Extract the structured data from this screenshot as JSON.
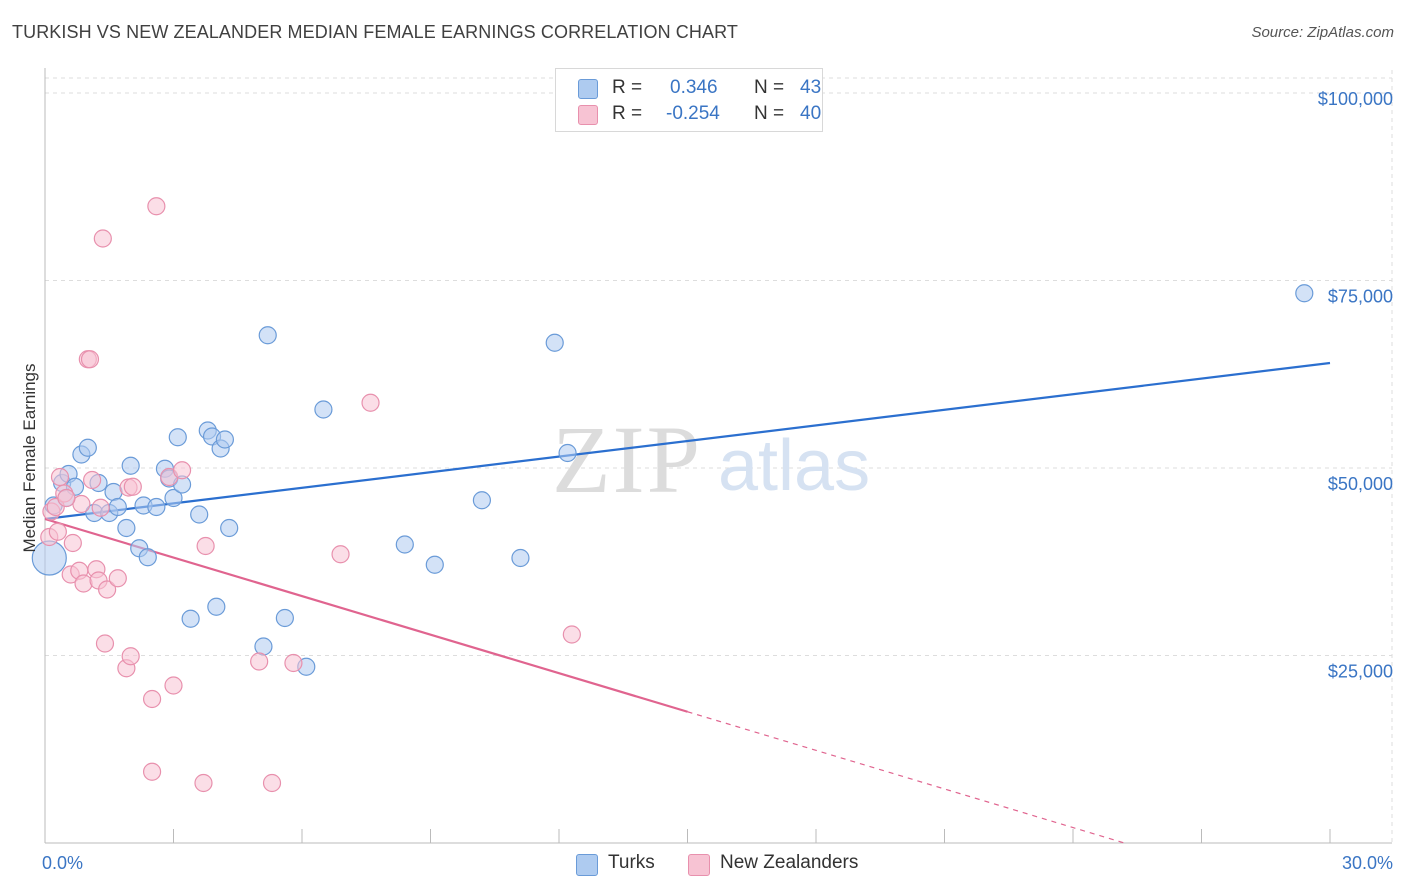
{
  "title": "TURKISH VS NEW ZEALANDER MEDIAN FEMALE EARNINGS CORRELATION CHART",
  "source": "Source: ZipAtlas.com",
  "watermark": {
    "zip": "ZIP",
    "atlas": "atlas"
  },
  "legend": {
    "r_label": "R =",
    "n_label": "N =",
    "turks": {
      "r": "0.346",
      "n": "43"
    },
    "nz": {
      "r": "-0.254",
      "n": "40"
    }
  },
  "bottom_legend": {
    "turks": "Turks",
    "nz": "New Zealanders"
  },
  "colors": {
    "turks_fill": "#aecbf0",
    "turks_stroke": "#6a9bd8",
    "turks_line": "#2b6fcf",
    "nz_fill": "#f7c3d3",
    "nz_stroke": "#e890ad",
    "nz_line": "#e0648f",
    "axis_text": "#3a75c4",
    "grid": "#dddddd"
  },
  "chart_data": {
    "type": "scatter",
    "title": "TURKISH VS NEW ZEALANDER MEDIAN FEMALE EARNINGS CORRELATION CHART",
    "xlabel": "",
    "ylabel": "Median Female Earnings",
    "xlim": [
      0,
      30
    ],
    "ylim": [
      0,
      102000
    ],
    "x_tick_labels": [
      "0.0%",
      "30.0%"
    ],
    "y_ticks": [
      25000,
      50000,
      75000,
      100000
    ],
    "y_tick_labels": [
      "$25,000",
      "$50,000",
      "$75,000",
      "$100,000"
    ],
    "series": [
      {
        "name": "Turks",
        "trend": {
          "x0": 0,
          "y0": 43200,
          "x1": 30,
          "y1": 64000
        },
        "points": [
          {
            "x": 0.1,
            "y": 38000,
            "big": true
          },
          {
            "x": 0.2,
            "y": 45000
          },
          {
            "x": 0.4,
            "y": 48000
          },
          {
            "x": 0.5,
            "y": 46000
          },
          {
            "x": 0.55,
            "y": 49200
          },
          {
            "x": 0.7,
            "y": 47500
          },
          {
            "x": 0.85,
            "y": 51800
          },
          {
            "x": 1.0,
            "y": 52700
          },
          {
            "x": 1.15,
            "y": 44000
          },
          {
            "x": 1.25,
            "y": 48000
          },
          {
            "x": 1.5,
            "y": 44000
          },
          {
            "x": 1.6,
            "y": 46800
          },
          {
            "x": 1.7,
            "y": 44800
          },
          {
            "x": 1.9,
            "y": 42000
          },
          {
            "x": 2.0,
            "y": 50300
          },
          {
            "x": 2.2,
            "y": 39300
          },
          {
            "x": 2.4,
            "y": 38100
          },
          {
            "x": 2.3,
            "y": 45000
          },
          {
            "x": 2.6,
            "y": 44800
          },
          {
            "x": 2.8,
            "y": 49900
          },
          {
            "x": 2.9,
            "y": 48600
          },
          {
            "x": 3.0,
            "y": 46000
          },
          {
            "x": 3.1,
            "y": 54100
          },
          {
            "x": 3.2,
            "y": 47800
          },
          {
            "x": 3.4,
            "y": 29900
          },
          {
            "x": 3.6,
            "y": 43800
          },
          {
            "x": 3.8,
            "y": 55000
          },
          {
            "x": 3.9,
            "y": 54200
          },
          {
            "x": 4.0,
            "y": 31500
          },
          {
            "x": 4.1,
            "y": 52600
          },
          {
            "x": 4.2,
            "y": 53800
          },
          {
            "x": 4.3,
            "y": 42000
          },
          {
            "x": 5.1,
            "y": 26200
          },
          {
            "x": 5.2,
            "y": 67700
          },
          {
            "x": 5.6,
            "y": 30000
          },
          {
            "x": 6.1,
            "y": 23500
          },
          {
            "x": 6.5,
            "y": 57800
          },
          {
            "x": 8.4,
            "y": 39800
          },
          {
            "x": 9.1,
            "y": 37100
          },
          {
            "x": 10.2,
            "y": 45700
          },
          {
            "x": 11.1,
            "y": 38000
          },
          {
            "x": 11.9,
            "y": 66700
          },
          {
            "x": 12.2,
            "y": 52000
          },
          {
            "x": 29.4,
            "y": 73300
          }
        ]
      },
      {
        "name": "New Zealanders",
        "trend": {
          "x0": 0,
          "y0": 43200,
          "x1": 15,
          "y1": 17500
        },
        "trend_dashed": {
          "x0": 15,
          "y0": 17500,
          "x1": 25.2,
          "y1": 0
        },
        "points": [
          {
            "x": 0.1,
            "y": 40800
          },
          {
            "x": 0.15,
            "y": 44200
          },
          {
            "x": 0.25,
            "y": 44800
          },
          {
            "x": 0.35,
            "y": 48800
          },
          {
            "x": 0.45,
            "y": 46600
          },
          {
            "x": 0.6,
            "y": 35800
          },
          {
            "x": 0.65,
            "y": 40000
          },
          {
            "x": 0.8,
            "y": 36300
          },
          {
            "x": 0.85,
            "y": 45200
          },
          {
            "x": 0.9,
            "y": 34600
          },
          {
            "x": 1.0,
            "y": 64500
          },
          {
            "x": 1.05,
            "y": 64500
          },
          {
            "x": 1.1,
            "y": 48400
          },
          {
            "x": 1.2,
            "y": 36500
          },
          {
            "x": 1.3,
            "y": 44700
          },
          {
            "x": 1.25,
            "y": 35000
          },
          {
            "x": 1.35,
            "y": 80600
          },
          {
            "x": 1.4,
            "y": 26600
          },
          {
            "x": 1.45,
            "y": 33800
          },
          {
            "x": 1.7,
            "y": 35300
          },
          {
            "x": 1.9,
            "y": 23300
          },
          {
            "x": 1.95,
            "y": 47400
          },
          {
            "x": 2.0,
            "y": 24900
          },
          {
            "x": 2.05,
            "y": 47500
          },
          {
            "x": 2.5,
            "y": 19200
          },
          {
            "x": 2.5,
            "y": 9500
          },
          {
            "x": 2.6,
            "y": 84900
          },
          {
            "x": 2.9,
            "y": 48800
          },
          {
            "x": 3.0,
            "y": 21000
          },
          {
            "x": 3.2,
            "y": 49700
          },
          {
            "x": 3.7,
            "y": 8000
          },
          {
            "x": 3.75,
            "y": 39600
          },
          {
            "x": 5.0,
            "y": 24200
          },
          {
            "x": 5.3,
            "y": 8000
          },
          {
            "x": 5.8,
            "y": 24000
          },
          {
            "x": 6.9,
            "y": 38500
          },
          {
            "x": 7.6,
            "y": 58700
          },
          {
            "x": 12.3,
            "y": 27800
          },
          {
            "x": 0.3,
            "y": 41500
          },
          {
            "x": 0.5,
            "y": 46000
          }
        ]
      }
    ]
  }
}
